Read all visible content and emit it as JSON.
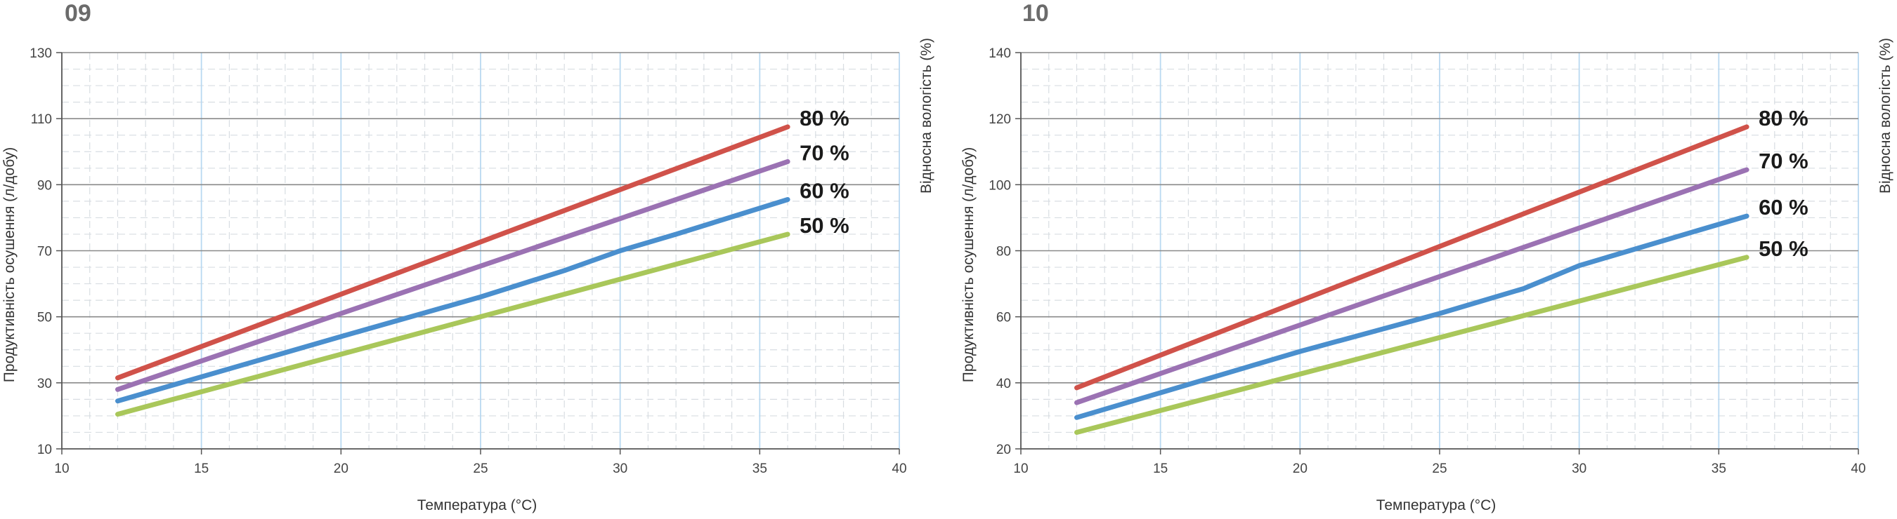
{
  "colors": {
    "series_80": "#d0524a",
    "series_70": "#9b72b3",
    "series_60": "#4a8fce",
    "series_50": "#a9c75a",
    "grid_major_h": "#8a8a8a",
    "grid_minor_h": "#d8dde2",
    "grid_major_v": "#b9d9f1",
    "grid_minor_v": "#d8dde2"
  },
  "chart_data": [
    {
      "type": "line",
      "panel_id": "09",
      "xlabel": "Температура (°C)",
      "ylabel": "Продуктивність осушення (л/добу)",
      "right_label": "Відносна вологість (%)",
      "xlim": [
        10,
        40
      ],
      "ylim": [
        10,
        130
      ],
      "x_ticks": [
        "10",
        "15",
        "20",
        "25",
        "30",
        "35",
        "40"
      ],
      "y_ticks": [
        "10",
        "30",
        "50",
        "70",
        "90",
        "110",
        "130"
      ],
      "grid": true,
      "series": [
        {
          "name": "80 %",
          "color_key": "series_80",
          "x": [
            12,
            36
          ],
          "y": [
            31.5,
            107.5
          ]
        },
        {
          "name": "70 %",
          "color_key": "series_70",
          "x": [
            12,
            36
          ],
          "y": [
            28,
            97
          ]
        },
        {
          "name": "60 %",
          "color_key": "series_60",
          "x": [
            12,
            20,
            25,
            28,
            30,
            32,
            36
          ],
          "y": [
            24.5,
            44,
            56,
            64,
            70,
            75,
            85.5
          ]
        },
        {
          "name": "50 %",
          "color_key": "series_50",
          "x": [
            12,
            36
          ],
          "y": [
            20.5,
            75
          ]
        }
      ]
    },
    {
      "type": "line",
      "panel_id": "10",
      "xlabel": "Температура (°C)",
      "ylabel": "Продуктивність осушення (л/добу)",
      "right_label": "Відносна вологість (%)",
      "xlim": [
        10,
        40
      ],
      "ylim": [
        20,
        140
      ],
      "x_ticks": [
        "10",
        "15",
        "20",
        "25",
        "30",
        "35",
        "40"
      ],
      "y_ticks": [
        "20",
        "40",
        "60",
        "80",
        "100",
        "120",
        "140"
      ],
      "grid": true,
      "series": [
        {
          "name": "80 %",
          "color_key": "series_80",
          "x": [
            12,
            36
          ],
          "y": [
            38.5,
            117.5
          ]
        },
        {
          "name": "70 %",
          "color_key": "series_70",
          "x": [
            12,
            36
          ],
          "y": [
            34,
            104.5
          ]
        },
        {
          "name": "60 %",
          "color_key": "series_60",
          "x": [
            12,
            20,
            25,
            28,
            30,
            32,
            36
          ],
          "y": [
            29.5,
            49.5,
            61,
            68.5,
            75.5,
            80.5,
            90.5
          ]
        },
        {
          "name": "50 %",
          "color_key": "series_50",
          "x": [
            12,
            36
          ],
          "y": [
            25,
            78
          ]
        }
      ]
    }
  ]
}
